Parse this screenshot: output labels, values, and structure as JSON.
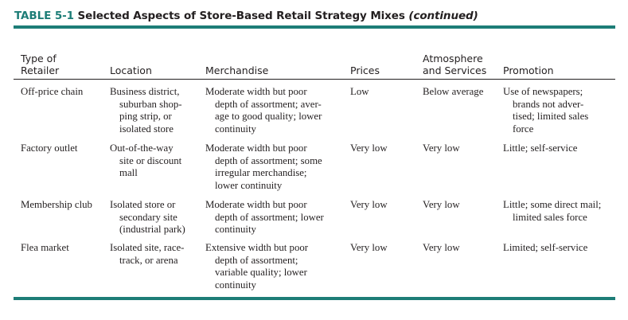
{
  "table": {
    "number": "TABLE 5-1",
    "title": "Selected Aspects of Store-Based Retail Strategy Mixes",
    "continued": "(continued)",
    "headers": {
      "retailer": [
        "Type of",
        "Retailer"
      ],
      "location": "Location",
      "merchandise": "Merchandise",
      "prices": "Prices",
      "atmosphere": [
        "Atmosphere",
        "and Services"
      ],
      "promotion": "Promotion"
    },
    "rows": [
      {
        "retailer": "Off-price chain",
        "location": [
          "Business district,",
          "suburban shop-",
          "ping strip, or",
          "isolated store"
        ],
        "merchandise": [
          "Moderate width but poor",
          "depth of assortment; aver-",
          "age to good quality; lower",
          "continuity"
        ],
        "prices": "Low",
        "atmosphere": "Below average",
        "promotion": [
          "Use of newspapers;",
          "brands not adver-",
          "tised; limited sales",
          "force"
        ]
      },
      {
        "retailer": "Factory outlet",
        "location": [
          "Out-of-the-way",
          "site or discount",
          "mall"
        ],
        "merchandise": [
          "Moderate width but poor",
          "depth of assortment; some",
          "irregular merchandise;",
          "lower continuity"
        ],
        "prices": "Very low",
        "atmosphere": "Very low",
        "promotion": [
          "Little; self-service"
        ]
      },
      {
        "retailer": "Membership club",
        "location": [
          "Isolated store or",
          "secondary site",
          "(industrial park)"
        ],
        "merchandise": [
          "Moderate width but poor",
          "depth of assortment; lower",
          "continuity"
        ],
        "prices": "Very low",
        "atmosphere": "Very low",
        "promotion": [
          "Little; some direct mail;",
          "limited sales force"
        ]
      },
      {
        "retailer": "Flea market",
        "location": [
          "Isolated site, race-",
          "track, or arena"
        ],
        "merchandise": [
          "Extensive width but poor",
          "depth of assortment;",
          "variable quality; lower",
          "continuity"
        ],
        "prices": "Very low",
        "atmosphere": "Very low",
        "promotion": [
          "Limited; self-service"
        ]
      }
    ]
  }
}
